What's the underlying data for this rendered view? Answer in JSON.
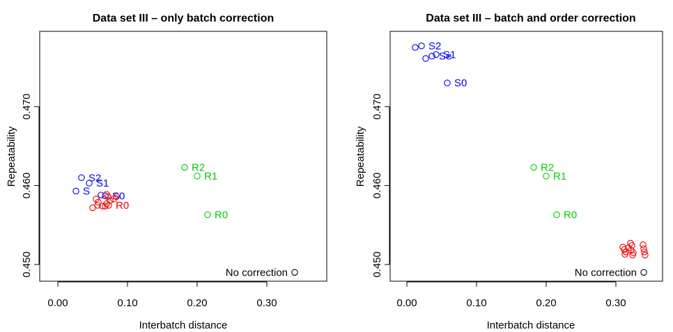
{
  "colors": {
    "batch": "#0000ee",
    "order": "#ee0000",
    "rep": "#00cc00",
    "none": "#000000"
  },
  "chart_data": [
    {
      "type": "scatter",
      "title": "Data set III – only batch correction",
      "xlabel": "Interbatch distance",
      "ylabel": "Repeatability",
      "xlim": [
        0.0,
        0.35
      ],
      "ylim": [
        0.4478,
        0.4792
      ],
      "xticks": [
        0.0,
        0.1,
        0.2,
        0.3
      ],
      "xtick_labels": [
        "0.00",
        "0.10",
        "0.20",
        "0.30"
      ],
      "yticks": [
        0.45,
        0.46,
        0.47
      ],
      "ytick_labels": [
        "0.450",
        "0.460",
        "0.470"
      ],
      "grid": false,
      "series": [
        {
          "color_key": "none",
          "points": [
            {
              "x": 0.34,
              "y": 0.449,
              "label": "No correction",
              "label_side": "left"
            }
          ]
        },
        {
          "color_key": "rep",
          "points": [
            {
              "x": 0.182,
              "y": 0.4623,
              "label": "R2",
              "label_side": "right"
            },
            {
              "x": 0.2,
              "y": 0.4612,
              "label": "R1",
              "label_side": "right"
            },
            {
              "x": 0.215,
              "y": 0.4563,
              "label": "R0",
              "label_side": "right"
            }
          ]
        },
        {
          "color_key": "batch",
          "points": [
            {
              "x": 0.034,
              "y": 0.461,
              "label": "S2",
              "label_side": "right"
            },
            {
              "x": 0.045,
              "y": 0.4603,
              "label": "S1",
              "label_side": "right"
            },
            {
              "x": 0.026,
              "y": 0.4593,
              "label": "S",
              "label_side": "right"
            },
            {
              "x": 0.062,
              "y": 0.4588,
              "label": "",
              "label_side": "right"
            },
            {
              "x": 0.068,
              "y": 0.4587,
              "label": "S0",
              "label_side": "right"
            }
          ]
        },
        {
          "color_key": "order",
          "points": [
            {
              "x": 0.055,
              "y": 0.4583,
              "label": "",
              "label_side": "right"
            },
            {
              "x": 0.058,
              "y": 0.4579,
              "label": "",
              "label_side": "right"
            },
            {
              "x": 0.05,
              "y": 0.4572,
              "label": "",
              "label_side": "right"
            },
            {
              "x": 0.057,
              "y": 0.4575,
              "label": "",
              "label_side": "right"
            },
            {
              "x": 0.064,
              "y": 0.4574,
              "label": "",
              "label_side": "right"
            },
            {
              "x": 0.07,
              "y": 0.4589,
              "label": "",
              "label_side": "right"
            },
            {
              "x": 0.072,
              "y": 0.4586,
              "label": "",
              "label_side": "right"
            },
            {
              "x": 0.075,
              "y": 0.4581,
              "label": "",
              "label_side": "right"
            },
            {
              "x": 0.07,
              "y": 0.4577,
              "label": "",
              "label_side": "right"
            },
            {
              "x": 0.073,
              "y": 0.4575,
              "label": "R0",
              "label_side": "right"
            },
            {
              "x": 0.08,
              "y": 0.4583,
              "label": "",
              "label_side": "right"
            },
            {
              "x": 0.084,
              "y": 0.4586,
              "label": "",
              "label_side": "right"
            },
            {
              "x": 0.068,
              "y": 0.4574,
              "label": "",
              "label_side": "right"
            }
          ]
        }
      ]
    },
    {
      "type": "scatter",
      "title": "Data set III – batch and order correction",
      "xlabel": "Interbatch distance",
      "ylabel": "Repeatability",
      "xlim": [
        0.0,
        0.35
      ],
      "ylim": [
        0.4478,
        0.4792
      ],
      "xticks": [
        0.0,
        0.1,
        0.2,
        0.3
      ],
      "xtick_labels": [
        "0.00",
        "0.10",
        "0.20",
        "0.30"
      ],
      "yticks": [
        0.45,
        0.46,
        0.47
      ],
      "ytick_labels": [
        "0.450",
        "0.460",
        "0.470"
      ],
      "grid": false,
      "series": [
        {
          "color_key": "none",
          "points": [
            {
              "x": 0.34,
              "y": 0.449,
              "label": "No correction",
              "label_side": "left"
            }
          ]
        },
        {
          "color_key": "rep",
          "points": [
            {
              "x": 0.182,
              "y": 0.4623,
              "label": "R2",
              "label_side": "right"
            },
            {
              "x": 0.2,
              "y": 0.4612,
              "label": "R1",
              "label_side": "right"
            },
            {
              "x": 0.215,
              "y": 0.4563,
              "label": "R0",
              "label_side": "right"
            }
          ]
        },
        {
          "color_key": "batch",
          "points": [
            {
              "x": 0.012,
              "y": 0.4775,
              "label": "",
              "label_side": "right"
            },
            {
              "x": 0.021,
              "y": 0.4777,
              "label": "S2",
              "label_side": "right"
            },
            {
              "x": 0.027,
              "y": 0.4761,
              "label": "",
              "label_side": "right"
            },
            {
              "x": 0.036,
              "y": 0.4764,
              "label": "Se",
              "label_side": "right"
            },
            {
              "x": 0.042,
              "y": 0.4766,
              "label": "S1",
              "label_side": "right"
            },
            {
              "x": 0.058,
              "y": 0.473,
              "label": "S0",
              "label_side": "right"
            }
          ]
        },
        {
          "color_key": "order",
          "points": [
            {
              "x": 0.31,
              "y": 0.4522,
              "label": "",
              "label_side": "right"
            },
            {
              "x": 0.312,
              "y": 0.4519,
              "label": "",
              "label_side": "right"
            },
            {
              "x": 0.314,
              "y": 0.4516,
              "label": "",
              "label_side": "right"
            },
            {
              "x": 0.313,
              "y": 0.4513,
              "label": "",
              "label_side": "right"
            },
            {
              "x": 0.318,
              "y": 0.4521,
              "label": "",
              "label_side": "right"
            },
            {
              "x": 0.321,
              "y": 0.4527,
              "label": "",
              "label_side": "right"
            },
            {
              "x": 0.323,
              "y": 0.4524,
              "label": "",
              "label_side": "right"
            },
            {
              "x": 0.322,
              "y": 0.4518,
              "label": "",
              "label_side": "right"
            },
            {
              "x": 0.325,
              "y": 0.4515,
              "label": "",
              "label_side": "right"
            },
            {
              "x": 0.324,
              "y": 0.4512,
              "label": "",
              "label_side": "right"
            },
            {
              "x": 0.339,
              "y": 0.4525,
              "label": "",
              "label_side": "right"
            },
            {
              "x": 0.34,
              "y": 0.452,
              "label": "",
              "label_side": "right"
            },
            {
              "x": 0.341,
              "y": 0.4516,
              "label": "",
              "label_side": "right"
            },
            {
              "x": 0.342,
              "y": 0.4512,
              "label": "",
              "label_side": "right"
            }
          ]
        }
      ]
    }
  ]
}
